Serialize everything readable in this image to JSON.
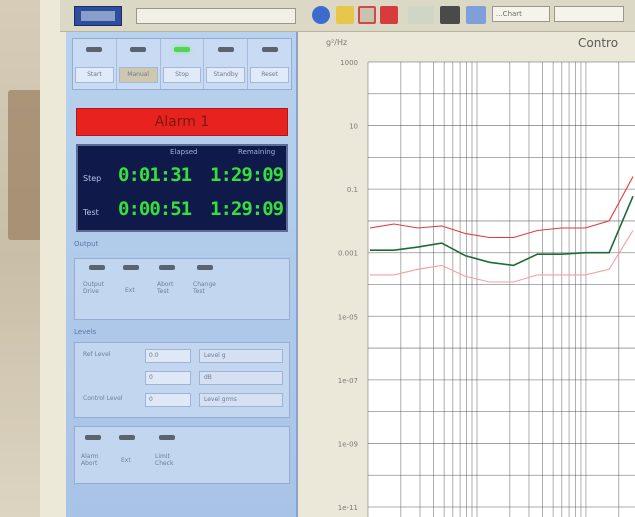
{
  "app": {
    "title": ""
  },
  "toolbar": {
    "combo_value": "",
    "combo2_value": "...Chart",
    "combo3_value": ""
  },
  "controls": {
    "buttons": [
      {
        "label": "Start",
        "led": "off"
      },
      {
        "label": "Manual",
        "led": "off",
        "selected": true
      },
      {
        "label": "Stop",
        "led": "on"
      },
      {
        "label": "Standby",
        "led": "off"
      },
      {
        "label": "Reset",
        "led": "off"
      }
    ]
  },
  "status": {
    "text": "Alarm 1"
  },
  "timer": {
    "col1": "Elapsed",
    "col2": "Remaining",
    "rows": [
      {
        "label": "Step",
        "elapsed": "0:01:31",
        "remaining": "1:29:09"
      },
      {
        "label": "Test",
        "elapsed": "0:00:51",
        "remaining": "1:29:09"
      }
    ]
  },
  "section_a": {
    "caption": "Output",
    "items": [
      "Output Drive",
      "Ext",
      "Abort Test",
      "Change Test"
    ]
  },
  "section_b": {
    "caption": "Levels",
    "rows": [
      {
        "label": "Ref Level",
        "value": "0.0",
        "unit": "Level g"
      },
      {
        "label": "",
        "value": "0",
        "unit": "dB"
      },
      {
        "label": "Control Level",
        "value": "0",
        "unit": "Level grms"
      }
    ]
  },
  "section_c": {
    "items": [
      "Alarm Abort",
      "Ext",
      "Limit Check"
    ]
  },
  "chart": {
    "title": "Contro",
    "ylabel": "g²/Hz"
  },
  "chart_data": {
    "type": "line",
    "title": "Contro",
    "xlabel": "",
    "ylabel": "g²/Hz",
    "yscale": "log",
    "yticks": [
      "1000",
      "10",
      "0.1",
      "0.001",
      "1e-05",
      "1e-07",
      "1e-09",
      "1e-11"
    ],
    "ylim": [
      1e-11,
      1000
    ],
    "grid": true,
    "series": [
      {
        "color": "#1f6b3a",
        "values": [
          0.0012,
          0.0012,
          0.0015,
          0.002,
          0.0008,
          0.0005,
          0.0004,
          0.0009,
          0.0009,
          0.001,
          0.001,
          0.06
        ]
      },
      {
        "color": "#e53a3a",
        "values": [
          0.006,
          0.008,
          0.006,
          0.007,
          0.004,
          0.003,
          0.003,
          0.005,
          0.006,
          0.006,
          0.01,
          0.25
        ]
      },
      {
        "color": "#f2a0a0",
        "values": [
          0.0002,
          0.0002,
          0.0003,
          0.0004,
          0.00018,
          0.00012,
          0.00012,
          0.0002,
          0.0002,
          0.0002,
          0.0003,
          0.005
        ]
      }
    ]
  },
  "colors": {
    "accent": "#e8231f",
    "timer_digits": "#36e03a",
    "panel": "#b8d1ee"
  }
}
